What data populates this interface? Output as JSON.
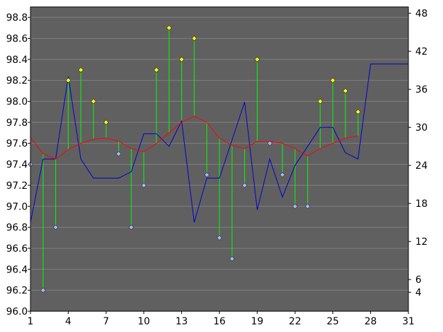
{
  "chart_data": {
    "type": "line",
    "title": "",
    "xlabel": "",
    "ylabel": "",
    "xlim": [
      1,
      31
    ],
    "ylim_left": [
      96.0,
      98.9
    ],
    "ylim_right": [
      1,
      49
    ],
    "x_ticks": [
      1,
      4,
      7,
      10,
      13,
      16,
      19,
      22,
      25,
      28,
      31
    ],
    "y_left_ticks": [
      "96.0",
      "96.2",
      "96.4",
      "96.6",
      "96.8",
      "97.0",
      "97.2",
      "97.4",
      "97.6",
      "97.8",
      "98.0",
      "98.2",
      "98.4",
      "98.6",
      "98.8"
    ],
    "y_right_ticks": [
      4,
      6,
      12,
      18,
      24,
      30,
      36,
      42,
      48
    ],
    "grid": "horizontal",
    "legend": "none",
    "colors": {
      "plot_background": "#606060",
      "grid": "#808080",
      "stem": "#00ff00",
      "marker_above": "#ffff00",
      "marker_below": "#b0b0ff",
      "moving_average": "#ff0000",
      "right_axis_series": "#0000cc"
    },
    "series": [
      {
        "axis": "left",
        "style": "stem-markers",
        "baseline": "moving_average",
        "x": [
          1,
          2,
          3,
          4,
          5,
          6,
          7,
          8,
          9,
          10,
          11,
          12,
          13,
          14,
          15,
          16,
          17,
          18,
          19,
          20,
          21,
          22,
          23,
          24,
          25,
          26,
          27
        ],
        "values": [
          97.4,
          96.2,
          96.8,
          98.2,
          98.3,
          98.0,
          97.8,
          97.5,
          96.8,
          97.2,
          98.3,
          98.7,
          98.4,
          98.6,
          97.3,
          96.7,
          96.5,
          97.2,
          98.4,
          97.6,
          97.3,
          97.0,
          97.0,
          98.0,
          98.2,
          98.1,
          97.9
        ]
      },
      {
        "axis": "left",
        "style": "line",
        "x": [
          1,
          2,
          3,
          4,
          5,
          6,
          7,
          8,
          9,
          10,
          11,
          12,
          13,
          14,
          15,
          16,
          17,
          18,
          19,
          20,
          21,
          22,
          23,
          24,
          25,
          26,
          27
        ],
        "values": [
          97.66,
          97.5,
          97.45,
          97.54,
          97.6,
          97.64,
          97.65,
          97.62,
          97.55,
          97.52,
          97.6,
          97.7,
          97.8,
          97.86,
          97.8,
          97.65,
          97.58,
          97.55,
          97.62,
          97.62,
          97.6,
          97.55,
          97.48,
          97.55,
          97.6,
          97.65,
          97.67
        ]
      },
      {
        "axis": "right",
        "style": "line",
        "x": [
          1,
          2,
          3,
          4,
          5,
          6,
          7,
          8,
          9,
          10,
          11,
          12,
          13,
          14,
          15,
          16,
          17,
          18,
          19,
          20,
          21,
          22,
          23,
          24,
          25,
          26,
          27,
          28,
          29,
          30,
          31
        ],
        "values": [
          15,
          25,
          25,
          38,
          25,
          22,
          22,
          22,
          23,
          29,
          29,
          27,
          31,
          15,
          22,
          22,
          28,
          34,
          17,
          25,
          19,
          24,
          27,
          30,
          30,
          26,
          25,
          40,
          40,
          40,
          40
        ]
      }
    ]
  }
}
